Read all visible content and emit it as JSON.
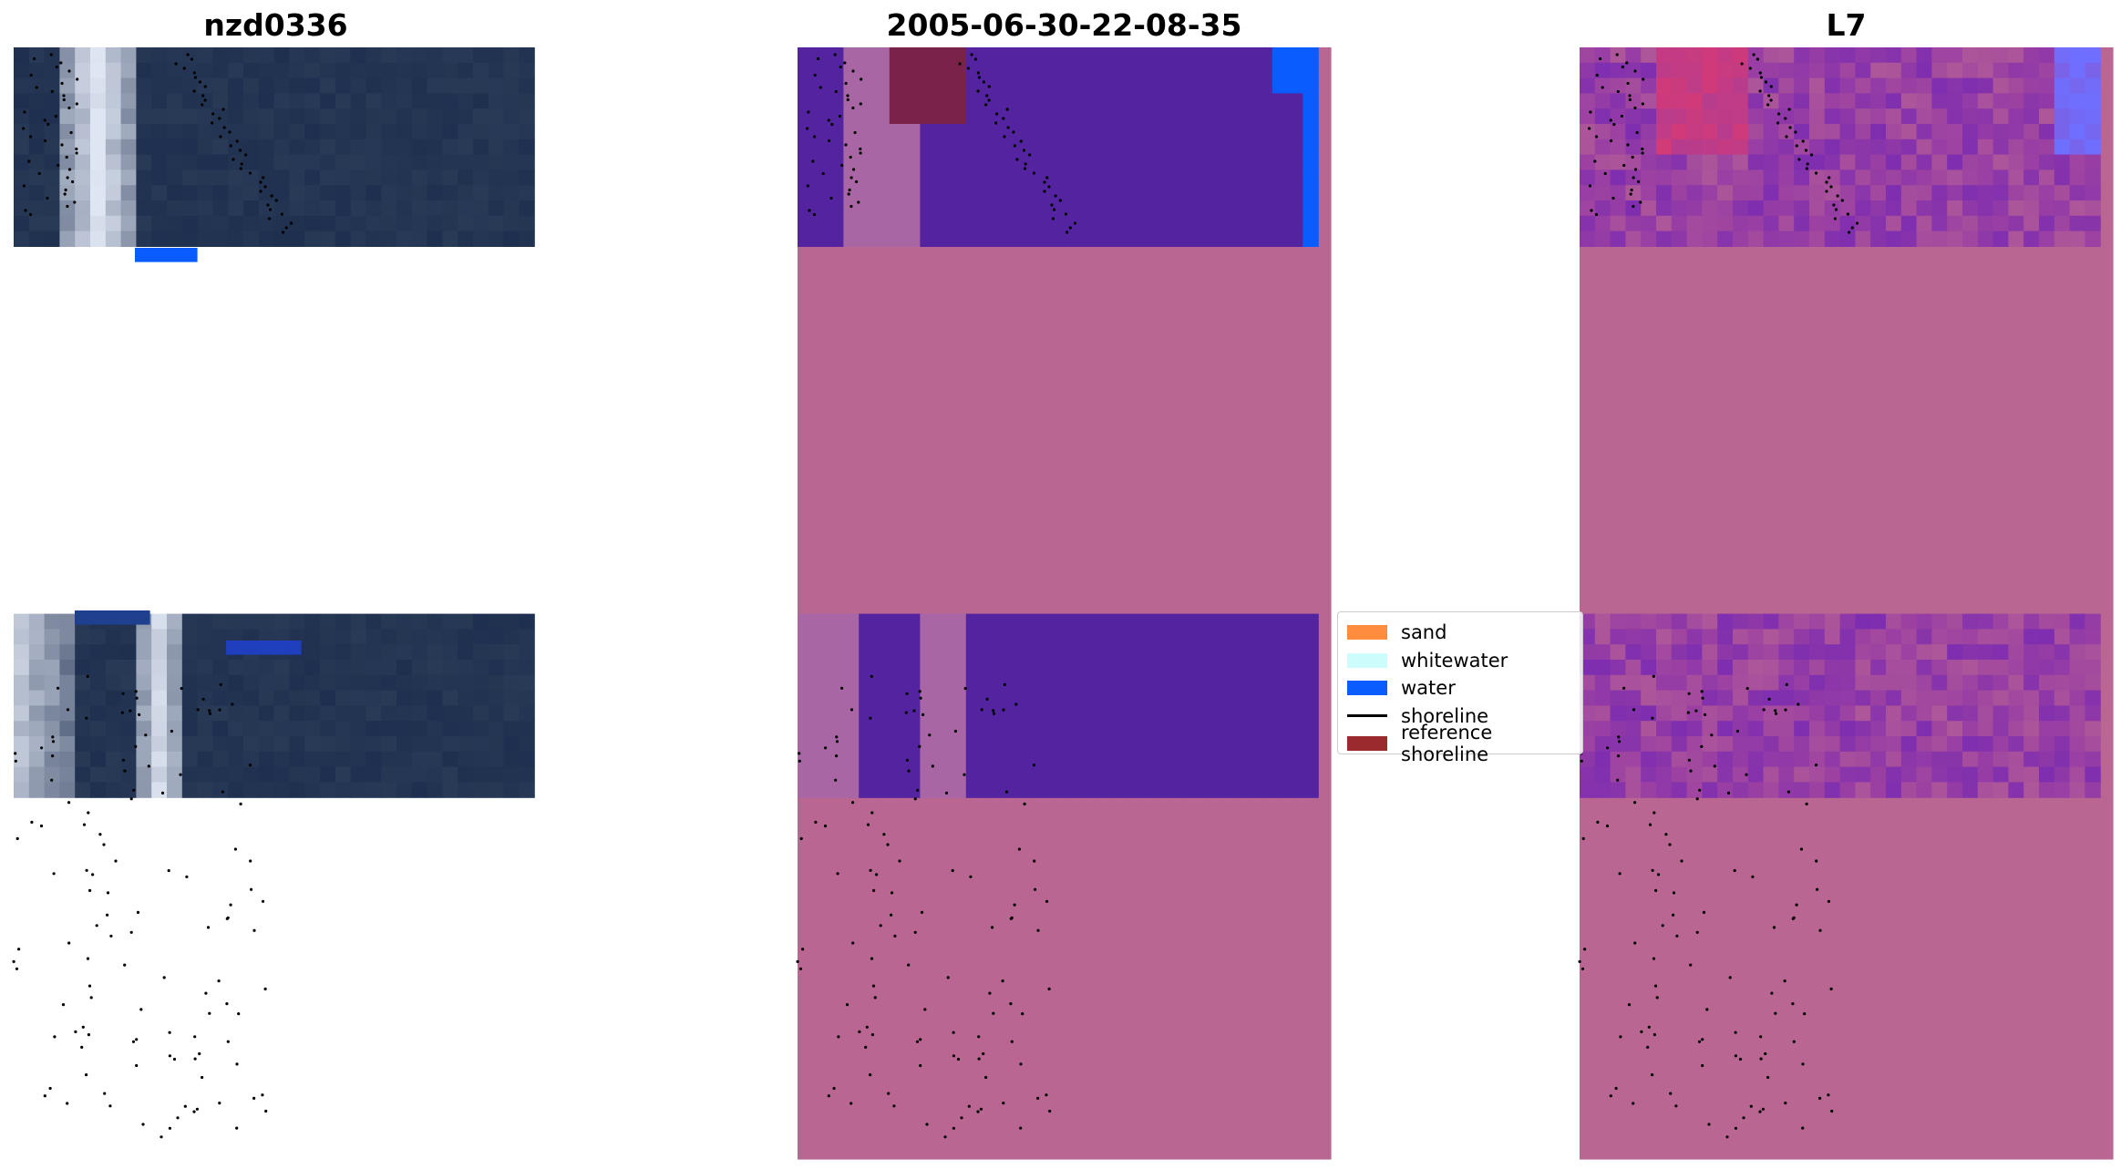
{
  "panels": [
    {
      "title": "nzd0336"
    },
    {
      "title": "2005-06-30-22-08-35"
    },
    {
      "title": "L7"
    }
  ],
  "legend": [
    {
      "label": "sand",
      "color": "#ff8c3f",
      "kind": "patch"
    },
    {
      "label": "whitewater",
      "color": "#ccfcfc",
      "kind": "patch"
    },
    {
      "label": "water",
      "color": "#0a5cff",
      "kind": "patch"
    },
    {
      "label": "shoreline",
      "color": "#000000",
      "kind": "line"
    },
    {
      "label": "reference shoreline",
      "color": "#9b2a2f",
      "kind": "patch"
    }
  ],
  "colors": {
    "nodata": "#ba6693",
    "water_class": "#5424a0",
    "land_class": "#a866a4",
    "water_overlay": "#0a5cff",
    "whitewater_overlay": "#ccfcfc",
    "reference_overlay": "#7a2349",
    "rgb_dark": "#1f2f4f",
    "rgb_bright": "#dfe6f3",
    "index_base": "#9a3fa3",
    "index_low": "#6a22b8",
    "index_high": "#d23a78"
  }
}
